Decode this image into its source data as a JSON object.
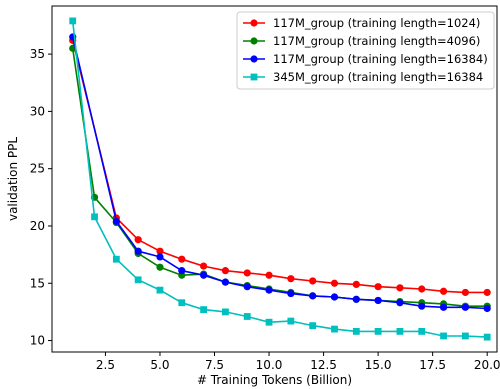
{
  "chart_data": {
    "type": "line",
    "xlabel": "# Training Tokens (Billion)",
    "ylabel": "validation PPL",
    "xlim": [
      0.05,
      20.45
    ],
    "ylim": [
      9.0,
      39.2
    ],
    "xticks": [
      2.5,
      5.0,
      7.5,
      10.0,
      12.5,
      15.0,
      17.5,
      20.0
    ],
    "xtick_labels": [
      "2.5",
      "5.0",
      "7.5",
      "10.0",
      "12.5",
      "15.0",
      "17.5",
      "20.0"
    ],
    "yticks": [
      10,
      15,
      20,
      25,
      30,
      35
    ],
    "ytick_labels": [
      "10",
      "15",
      "20",
      "25",
      "30",
      "35"
    ],
    "grid": false,
    "legend_position": "top-right",
    "series": [
      {
        "name": "117M_group (training length=1024)",
        "color": "#ff0000",
        "marker": "circle",
        "x": [
          1,
          3,
          4,
          5,
          6,
          7,
          8,
          9,
          10,
          11,
          12,
          13,
          14,
          15,
          16,
          17,
          18,
          19,
          20
        ],
        "y": [
          36.2,
          20.7,
          18.8,
          17.8,
          17.1,
          16.5,
          16.1,
          15.9,
          15.7,
          15.4,
          15.2,
          15.0,
          14.9,
          14.7,
          14.6,
          14.5,
          14.3,
          14.2,
          14.2
        ]
      },
      {
        "name": "117M_group (training length=4096)",
        "color": "#008000",
        "marker": "circle",
        "x": [
          1,
          2,
          3,
          4,
          5,
          6,
          7,
          8,
          9,
          10,
          11,
          12,
          13,
          14,
          15,
          16,
          17,
          18,
          19,
          20
        ],
        "y": [
          35.5,
          22.5,
          20.3,
          17.6,
          16.4,
          15.7,
          15.8,
          15.1,
          14.8,
          14.5,
          14.2,
          13.9,
          13.8,
          13.6,
          13.5,
          13.4,
          13.3,
          13.2,
          13.0,
          13.0
        ]
      },
      {
        "name": "117M_group (training length=16384)",
        "color": "#0000ff",
        "marker": "circle",
        "x": [
          1,
          3,
          4,
          5,
          6,
          7,
          8,
          9,
          10,
          11,
          12,
          13,
          14,
          15,
          16,
          17,
          18,
          19,
          20
        ],
        "y": [
          36.5,
          20.4,
          17.8,
          17.3,
          16.1,
          15.7,
          15.1,
          14.7,
          14.4,
          14.1,
          13.9,
          13.8,
          13.6,
          13.5,
          13.3,
          13.0,
          12.9,
          12.9,
          12.8
        ]
      },
      {
        "name": "345M_group (training length=16384",
        "color": "#00bfbf",
        "marker": "square",
        "x": [
          1,
          2,
          3,
          4,
          5,
          6,
          7,
          8,
          9,
          10,
          11,
          12,
          13,
          14,
          15,
          16,
          17,
          18,
          19,
          20
        ],
        "y": [
          37.9,
          20.8,
          17.1,
          15.3,
          14.4,
          13.3,
          12.7,
          12.5,
          12.1,
          11.6,
          11.7,
          11.3,
          11.0,
          10.8,
          10.8,
          10.8,
          10.8,
          10.4,
          10.4,
          10.3
        ]
      }
    ]
  }
}
